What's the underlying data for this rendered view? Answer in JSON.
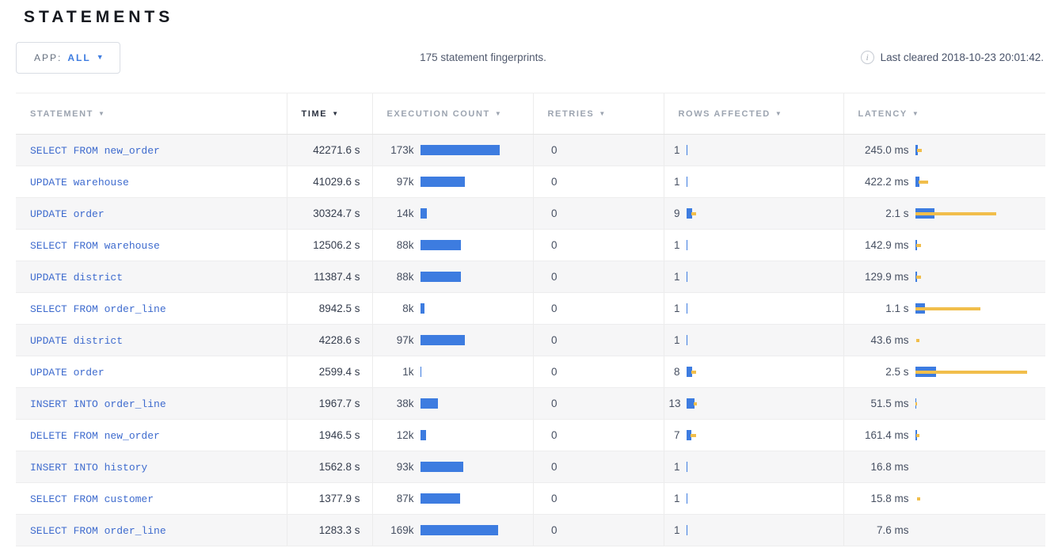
{
  "page": {
    "title": "STATEMENTS"
  },
  "toolbar": {
    "app_filter": {
      "label": "APP:",
      "value": "ALL"
    },
    "summary": "175 statement fingerprints.",
    "last_cleared": "Last cleared 2018-10-23 20:01:42."
  },
  "colors": {
    "bar_blue": "#3d7ce0",
    "bar_yellow": "#f1be4b",
    "statement_link_blue": "#3e6bce",
    "accent_blue": "#3e7ce0",
    "row_stripe": "#f6f6f7"
  },
  "table": {
    "columns": [
      {
        "label": "STATEMENT",
        "sorted": false
      },
      {
        "label": "TIME",
        "sorted": true
      },
      {
        "label": "EXECUTION COUNT",
        "sorted": false
      },
      {
        "label": "RETRIES",
        "sorted": false
      },
      {
        "label": "ROWS AFFECTED",
        "sorted": false
      },
      {
        "label": "LATENCY",
        "sorted": false
      }
    ],
    "rows": [
      {
        "statement": "SELECT FROM new_order",
        "time": "42271.6 s",
        "exec": {
          "value": "173k",
          "bar": 100
        },
        "retries": "0",
        "rows_affected": {
          "value": "1",
          "bar": 1,
          "dev": null
        },
        "latency": {
          "value": "245.0 ms",
          "bar": 3,
          "dev": [
            2,
            8
          ]
        }
      },
      {
        "statement": "UPDATE warehouse",
        "time": "41029.6 s",
        "exec": {
          "value": "97k",
          "bar": 56
        },
        "retries": "0",
        "rows_affected": {
          "value": "1",
          "bar": 1,
          "dev": null
        },
        "latency": {
          "value": "422.2 ms",
          "bar": 5,
          "dev": [
            4,
            16
          ]
        }
      },
      {
        "statement": "UPDATE order",
        "time": "30324.7 s",
        "exec": {
          "value": "14k",
          "bar": 8
        },
        "retries": "0",
        "rows_affected": {
          "value": "9",
          "bar": 7,
          "dev": [
            6,
            12
          ]
        },
        "latency": {
          "value": "2.1 s",
          "bar": 24,
          "dev": [
            0,
            102
          ]
        }
      },
      {
        "statement": "SELECT FROM warehouse",
        "time": "12506.2 s",
        "exec": {
          "value": "88k",
          "bar": 51
        },
        "retries": "0",
        "rows_affected": {
          "value": "1",
          "bar": 1,
          "dev": null
        },
        "latency": {
          "value": "142.9 ms",
          "bar": 2,
          "dev": [
            1,
            7
          ]
        }
      },
      {
        "statement": "UPDATE district",
        "time": "11387.4 s",
        "exec": {
          "value": "88k",
          "bar": 51
        },
        "retries": "0",
        "rows_affected": {
          "value": "1",
          "bar": 1,
          "dev": null
        },
        "latency": {
          "value": "129.9 ms",
          "bar": 2,
          "dev": [
            1,
            7
          ]
        }
      },
      {
        "statement": "SELECT FROM order_line",
        "time": "8942.5 s",
        "exec": {
          "value": "8k",
          "bar": 5
        },
        "retries": "0",
        "rows_affected": {
          "value": "1",
          "bar": 1,
          "dev": null
        },
        "latency": {
          "value": "1.1 s",
          "bar": 12,
          "dev": [
            0,
            82
          ]
        }
      },
      {
        "statement": "UPDATE district",
        "time": "4228.6 s",
        "exec": {
          "value": "97k",
          "bar": 56
        },
        "retries": "0",
        "rows_affected": {
          "value": "1",
          "bar": 1,
          "dev": null
        },
        "latency": {
          "value": "43.6 ms",
          "bar": 0,
          "dev": [
            1,
            5
          ]
        }
      },
      {
        "statement": "UPDATE order",
        "time": "2599.4 s",
        "exec": {
          "value": "1k",
          "bar": 1
        },
        "retries": "0",
        "rows_affected": {
          "value": "8",
          "bar": 7,
          "dev": [
            6,
            12
          ]
        },
        "latency": {
          "value": "2.5 s",
          "bar": 26,
          "dev": [
            0,
            141
          ]
        }
      },
      {
        "statement": "INSERT INTO order_line",
        "time": "1967.7 s",
        "exec": {
          "value": "38k",
          "bar": 22
        },
        "retries": "0",
        "rows_affected": {
          "value": "13",
          "bar": 10,
          "dev": [
            9,
            13
          ]
        },
        "latency": {
          "value": "51.5 ms",
          "bar": 1,
          "dev": [
            0,
            2
          ]
        }
      },
      {
        "statement": "DELETE FROM new_order",
        "time": "1946.5 s",
        "exec": {
          "value": "12k",
          "bar": 7
        },
        "retries": "0",
        "rows_affected": {
          "value": "7",
          "bar": 6,
          "dev": [
            5,
            12
          ]
        },
        "latency": {
          "value": "161.4 ms",
          "bar": 2,
          "dev": [
            1,
            5
          ]
        }
      },
      {
        "statement": "INSERT INTO history",
        "time": "1562.8 s",
        "exec": {
          "value": "93k",
          "bar": 54
        },
        "retries": "0",
        "rows_affected": {
          "value": "1",
          "bar": 1,
          "dev": null
        },
        "latency": {
          "value": "16.8 ms",
          "bar": 0,
          "dev": null
        }
      },
      {
        "statement": "SELECT FROM customer",
        "time": "1377.9 s",
        "exec": {
          "value": "87k",
          "bar": 50
        },
        "retries": "0",
        "rows_affected": {
          "value": "1",
          "bar": 1,
          "dev": null
        },
        "latency": {
          "value": "15.8 ms",
          "bar": 0,
          "dev": [
            2,
            6
          ]
        }
      },
      {
        "statement": "SELECT FROM order_line",
        "time": "1283.3 s",
        "exec": {
          "value": "169k",
          "bar": 98
        },
        "retries": "0",
        "rows_affected": {
          "value": "1",
          "bar": 1,
          "dev": null
        },
        "latency": {
          "value": "7.6 ms",
          "bar": 0,
          "dev": null
        }
      }
    ]
  }
}
